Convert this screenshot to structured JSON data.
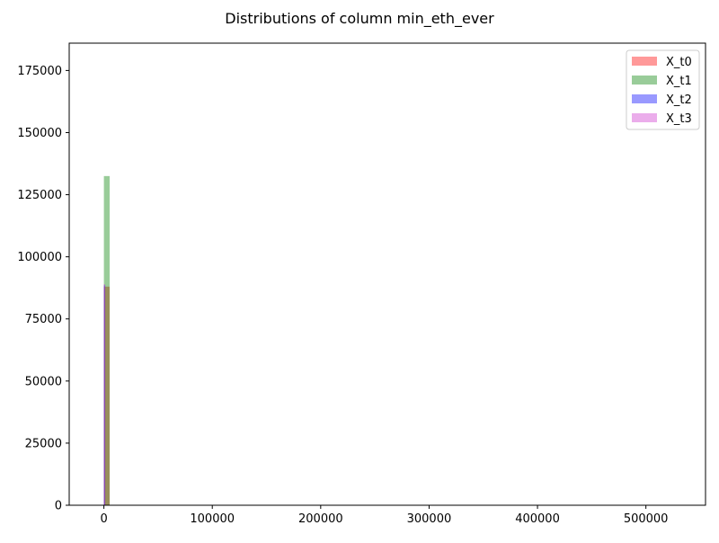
{
  "chart_data": {
    "type": "bar",
    "title": "Distributions of column min_eth_ever",
    "xlabel": "",
    "ylabel": "",
    "xlim": [
      -32000,
      555000
    ],
    "ylim": [
      0,
      186000
    ],
    "x_ticks": [
      0,
      100000,
      200000,
      300000,
      400000,
      500000
    ],
    "y_ticks": [
      0,
      25000,
      50000,
      75000,
      100000,
      125000,
      150000,
      175000
    ],
    "grid": false,
    "legend_position": "top-right",
    "series": [
      {
        "name": "X_t0",
        "color": "#ff0000",
        "opacity": 0.4,
        "bins": [
          {
            "x0": 0,
            "x1": 5300,
            "value": 88000
          }
        ]
      },
      {
        "name": "X_t1",
        "color": "#008000",
        "opacity": 0.4,
        "bins": [
          {
            "x0": 0,
            "x1": 5300,
            "value": 132500
          }
        ]
      },
      {
        "name": "X_t2",
        "color": "#0000ff",
        "opacity": 0.4,
        "bins": [
          {
            "x0": 0,
            "x1": 1200,
            "value": 88500
          }
        ]
      },
      {
        "name": "X_t3",
        "color": "#cc33cc",
        "opacity": 0.4,
        "bins": [
          {
            "x0": 0,
            "x1": 1200,
            "value": 89000
          }
        ]
      }
    ]
  }
}
